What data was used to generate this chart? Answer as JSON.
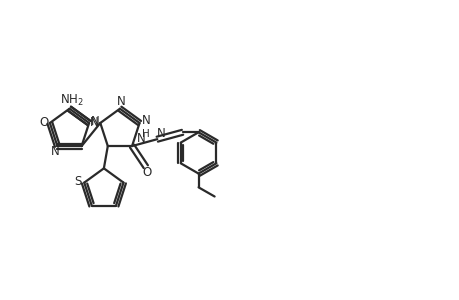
{
  "bg_color": "#ffffff",
  "line_color": "#2a2a2a",
  "line_width": 1.6,
  "figsize": [
    4.6,
    3.0
  ],
  "dpi": 100,
  "xlim": [
    -1,
    47
  ],
  "ylim": [
    0,
    30
  ]
}
